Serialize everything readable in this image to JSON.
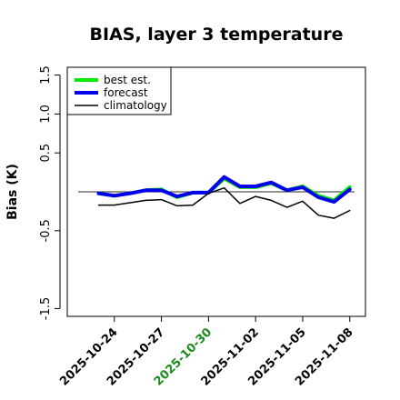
{
  "chart_data": {
    "type": "line",
    "title": "BIAS, layer 3 temperature",
    "xlabel": "",
    "ylabel": "Bias (K)",
    "ylim": [
      -1.6,
      1.6
    ],
    "xlim": [
      "2025-10-21",
      "2025-11-09"
    ],
    "yticks": [
      "-1.5",
      "-0.5",
      "0.5",
      "1.0",
      "1.5"
    ],
    "yticks_values": [
      -1.5,
      -0.5,
      0.5,
      1.0,
      1.5
    ],
    "xticks": [
      {
        "label": "2025-10-24",
        "color": "#000000"
      },
      {
        "label": "2025-10-27",
        "color": "#000000"
      },
      {
        "label": "2025-10-30",
        "color": "#1a8a1a"
      },
      {
        "label": "2025-11-02",
        "color": "#000000"
      },
      {
        "label": "2025-11-05",
        "color": "#000000"
      },
      {
        "label": "2025-11-08",
        "color": "#000000"
      }
    ],
    "reference_line": 0,
    "grid": false,
    "legend_position": "top-left",
    "x": [
      "2025-10-23",
      "2025-10-24",
      "2025-10-25",
      "2025-10-26",
      "2025-10-27",
      "2025-10-28",
      "2025-10-29",
      "2025-10-30",
      "2025-10-31",
      "2025-11-01",
      "2025-11-02",
      "2025-11-03",
      "2025-11-04",
      "2025-11-05",
      "2025-11-06",
      "2025-11-07",
      "2025-11-08"
    ],
    "series": [
      {
        "name": "best est.",
        "color": "#00ee00",
        "width": 4,
        "values": [
          -0.02,
          -0.05,
          -0.02,
          0.02,
          0.03,
          -0.07,
          -0.01,
          -0.01,
          0.17,
          0.06,
          0.06,
          0.11,
          0.02,
          0.07,
          -0.05,
          -0.11,
          0.06
        ]
      },
      {
        "name": "forecast",
        "color": "#0000ee",
        "width": 4,
        "values": [
          -0.02,
          -0.05,
          -0.02,
          0.02,
          0.02,
          -0.06,
          -0.01,
          -0.01,
          0.19,
          0.07,
          0.07,
          0.12,
          0.02,
          0.06,
          -0.07,
          -0.13,
          0.03
        ]
      },
      {
        "name": "climatology",
        "color": "#000000",
        "width": 1.5,
        "values": [
          -0.17,
          -0.17,
          -0.14,
          -0.11,
          -0.1,
          -0.18,
          -0.17,
          -0.02,
          0.05,
          -0.15,
          -0.06,
          -0.11,
          -0.2,
          -0.12,
          -0.3,
          -0.34,
          -0.24
        ]
      }
    ]
  }
}
